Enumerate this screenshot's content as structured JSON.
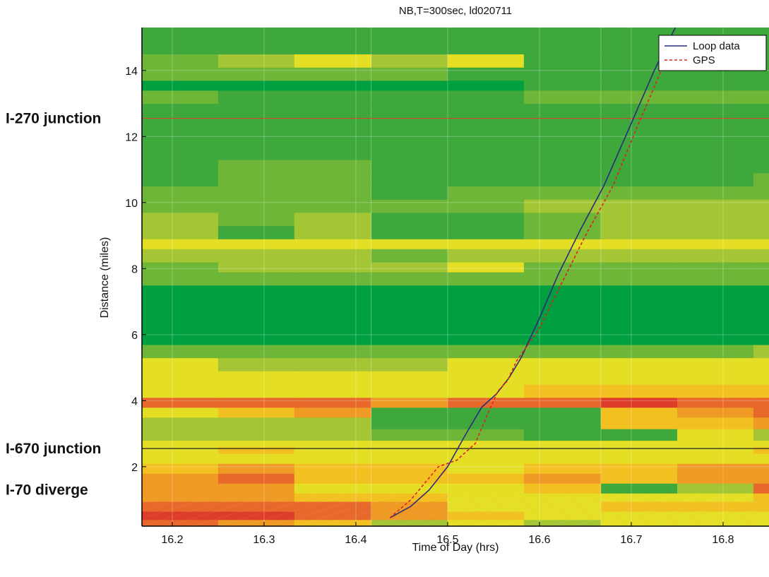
{
  "chart_data": {
    "type": "heatmap",
    "title": "NB,T=300sec, ld020711",
    "xlabel": "Time of Day (hrs)",
    "ylabel": "Distance (miles)",
    "xlim": [
      16.167,
      16.85
    ],
    "ylim": [
      0.2,
      15.3
    ],
    "xticks": [
      16.2,
      16.3,
      16.4,
      16.5,
      16.6,
      16.7,
      16.8
    ],
    "yticks": [
      2,
      4,
      6,
      8,
      10,
      12,
      14
    ],
    "grid": true,
    "legend_position": "top-right",
    "colors": {
      "dark_green": "#00a040",
      "green": "#3fa83d",
      "light_green": "#6db637",
      "yellow_green": "#a4c634",
      "yellow": "#e4df25",
      "light_orange": "#f3c021",
      "orange": "#ee9a25",
      "dark_orange": "#e7682a",
      "red": "#dd3c2a"
    },
    "time_bins_start": [
      16.167,
      16.25,
      16.333,
      16.417,
      16.5,
      16.583,
      16.667,
      16.75,
      16.833
    ],
    "bin_width_hrs": 0.0833,
    "distance_bins": [
      {
        "from": 0.2,
        "to": 0.4,
        "levels": [
          7,
          6,
          5,
          3,
          4,
          3,
          4,
          4,
          4
        ]
      },
      {
        "from": 0.4,
        "to": 0.65,
        "levels": [
          8,
          8,
          7,
          6,
          5,
          4,
          4,
          4,
          4
        ]
      },
      {
        "from": 0.65,
        "to": 0.95,
        "levels": [
          7,
          7,
          7,
          6,
          4,
          4,
          5,
          5,
          5
        ]
      },
      {
        "from": 0.95,
        "to": 1.2,
        "levels": [
          6,
          6,
          5,
          5,
          4,
          4,
          4,
          4,
          5
        ]
      },
      {
        "from": 1.2,
        "to": 1.5,
        "levels": [
          6,
          6,
          4,
          4,
          4,
          5,
          1,
          3,
          7
        ]
      },
      {
        "from": 1.5,
        "to": 1.8,
        "levels": [
          6,
          7,
          5,
          5,
          5,
          6,
          5,
          6,
          6
        ]
      },
      {
        "from": 1.8,
        "to": 2.1,
        "levels": [
          5,
          6,
          5,
          5,
          4,
          5,
          5,
          6,
          6
        ]
      },
      {
        "from": 2.1,
        "to": 2.4,
        "levels": [
          4,
          4,
          4,
          4,
          4,
          4,
          4,
          4,
          4
        ]
      },
      {
        "from": 2.4,
        "to": 2.6,
        "levels": [
          4,
          5,
          4,
          4,
          4,
          4,
          4,
          4,
          5
        ]
      },
      {
        "from": 2.6,
        "to": 2.8,
        "levels": [
          4,
          4,
          4,
          4,
          4,
          4,
          4,
          4,
          4
        ]
      },
      {
        "from": 2.8,
        "to": 3.15,
        "levels": [
          3,
          3,
          3,
          2,
          2,
          1,
          1,
          4,
          3
        ]
      },
      {
        "from": 3.15,
        "to": 3.5,
        "levels": [
          3,
          3,
          3,
          1,
          1,
          1,
          5,
          5,
          6
        ]
      },
      {
        "from": 3.5,
        "to": 3.8,
        "levels": [
          4,
          5,
          6,
          1,
          1,
          1,
          5,
          6,
          7
        ]
      },
      {
        "from": 3.8,
        "to": 4.1,
        "levels": [
          7,
          7,
          7,
          6,
          7,
          7,
          8,
          7,
          7
        ]
      },
      {
        "from": 4.1,
        "to": 4.5,
        "levels": [
          4,
          4,
          4,
          4,
          4,
          5,
          5,
          5,
          5
        ]
      },
      {
        "from": 4.5,
        "to": 4.9,
        "levels": [
          4,
          4,
          4,
          4,
          4,
          4,
          4,
          4,
          4
        ]
      },
      {
        "from": 4.9,
        "to": 5.3,
        "levels": [
          4,
          3,
          3,
          3,
          4,
          4,
          4,
          4,
          4
        ]
      },
      {
        "from": 5.3,
        "to": 5.7,
        "levels": [
          2,
          2,
          2,
          2,
          2,
          2,
          2,
          2,
          3
        ]
      },
      {
        "from": 5.7,
        "to": 7.5,
        "levels": [
          0,
          0,
          0,
          0,
          0,
          0,
          0,
          0,
          0
        ]
      },
      {
        "from": 7.5,
        "to": 7.9,
        "levels": [
          2,
          2,
          2,
          2,
          2,
          2,
          2,
          2,
          2
        ]
      },
      {
        "from": 7.9,
        "to": 8.2,
        "levels": [
          2,
          3,
          3,
          3,
          4,
          2,
          2,
          2,
          2
        ]
      },
      {
        "from": 8.2,
        "to": 8.6,
        "levels": [
          3,
          3,
          3,
          2,
          3,
          3,
          3,
          3,
          3
        ]
      },
      {
        "from": 8.6,
        "to": 8.9,
        "levels": [
          4,
          4,
          4,
          4,
          4,
          4,
          4,
          4,
          4
        ]
      },
      {
        "from": 8.9,
        "to": 9.3,
        "levels": [
          3,
          1,
          3,
          1,
          1,
          2,
          3,
          3,
          3
        ]
      },
      {
        "from": 9.3,
        "to": 9.7,
        "levels": [
          3,
          2,
          3,
          1,
          1,
          2,
          3,
          3,
          3
        ]
      },
      {
        "from": 9.7,
        "to": 10.1,
        "levels": [
          2,
          2,
          2,
          2,
          2,
          3,
          3,
          3,
          3
        ]
      },
      {
        "from": 10.1,
        "to": 10.5,
        "levels": [
          2,
          2,
          2,
          1,
          2,
          2,
          2,
          2,
          2
        ]
      },
      {
        "from": 10.5,
        "to": 10.9,
        "levels": [
          1,
          2,
          2,
          1,
          1,
          1,
          1,
          1,
          2
        ]
      },
      {
        "from": 10.9,
        "to": 11.3,
        "levels": [
          1,
          2,
          2,
          1,
          1,
          1,
          1,
          1,
          1
        ]
      },
      {
        "from": 11.3,
        "to": 12.6,
        "levels": [
          1,
          1,
          1,
          1,
          1,
          1,
          1,
          1,
          1
        ]
      },
      {
        "from": 12.6,
        "to": 13.0,
        "levels": [
          1,
          1,
          1,
          1,
          1,
          1,
          1,
          1,
          1
        ]
      },
      {
        "from": 13.0,
        "to": 13.4,
        "levels": [
          2,
          1,
          1,
          1,
          1,
          2,
          2,
          2,
          2
        ]
      },
      {
        "from": 13.4,
        "to": 13.7,
        "levels": [
          0,
          0,
          0,
          0,
          0,
          1,
          1,
          1,
          1
        ]
      },
      {
        "from": 13.7,
        "to": 14.1,
        "levels": [
          2,
          2,
          2,
          2,
          1,
          1,
          1,
          1,
          1
        ]
      },
      {
        "from": 14.1,
        "to": 14.5,
        "levels": [
          2,
          3,
          4,
          3,
          4,
          1,
          1,
          1,
          1
        ]
      },
      {
        "from": 14.5,
        "to": 15.3,
        "levels": [
          1,
          1,
          1,
          1,
          1,
          1,
          1,
          1,
          1
        ]
      }
    ],
    "reference_lines": [
      {
        "name": "I-270 junction",
        "y": 12.55,
        "color": "#d04a2a"
      },
      {
        "name": "I-670 junction",
        "y": 2.55,
        "color": "#222222"
      },
      {
        "name": "I-70 diverge",
        "y": 1.3,
        "color": null
      }
    ],
    "series": [
      {
        "name": "Loop data",
        "color": "#2b2b7a",
        "style": "solid",
        "x": [
          16.437,
          16.46,
          16.48,
          16.5,
          16.52,
          16.537,
          16.553,
          16.567,
          16.58,
          16.6,
          16.62,
          16.645,
          16.67,
          16.7,
          16.725,
          16.748
        ],
        "y": [
          0.45,
          0.8,
          1.3,
          2.0,
          3.0,
          3.8,
          4.2,
          4.7,
          5.3,
          6.5,
          7.8,
          9.2,
          10.5,
          12.4,
          14.0,
          15.3
        ]
      },
      {
        "name": "GPS",
        "color": "#dd2222",
        "style": "dashed",
        "x": [
          16.437,
          16.46,
          16.49,
          16.51,
          16.53,
          16.545,
          16.555,
          16.565,
          16.575,
          16.6,
          16.625,
          16.65,
          16.68,
          16.705,
          16.725,
          16.74
        ],
        "y": [
          0.45,
          1.0,
          2.0,
          2.2,
          2.7,
          3.7,
          4.3,
          4.6,
          5.2,
          6.2,
          7.6,
          9.0,
          10.5,
          12.2,
          13.5,
          14.5
        ]
      }
    ]
  }
}
